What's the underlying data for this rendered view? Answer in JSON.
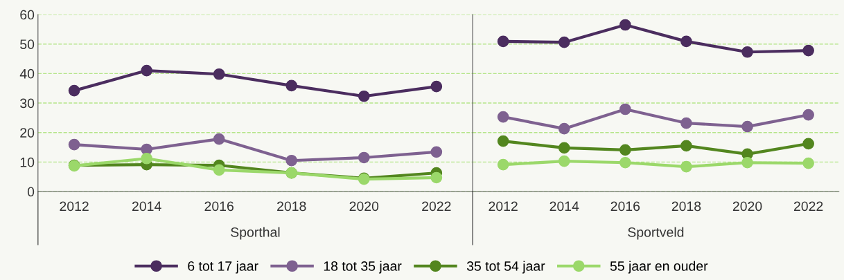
{
  "chart_data": [
    {
      "type": "line",
      "xlabel": "Sporthal",
      "categories": [
        "2012",
        "2014",
        "2016",
        "2018",
        "2020",
        "2022"
      ],
      "ylim": [
        0,
        60
      ],
      "yticks": [
        0,
        10,
        20,
        30,
        40,
        50,
        60
      ],
      "grid": "y",
      "legend": "bottom",
      "marker": "circle",
      "line_style": "solid",
      "series": [
        {
          "name": "6 tot 17 jaar",
          "color": "#4b2d5f",
          "values": [
            34.2,
            41.0,
            39.8,
            35.9,
            32.3,
            35.6
          ]
        },
        {
          "name": "18 tot 35 jaar",
          "color": "#7e6190",
          "values": [
            15.9,
            14.3,
            17.8,
            10.5,
            11.5,
            13.4
          ]
        },
        {
          "name": "35 tot 54 jaar",
          "color": "#53861f",
          "values": [
            8.9,
            9.1,
            8.9,
            6.3,
            4.5,
            6.3
          ]
        },
        {
          "name": "55 jaar en ouder",
          "color": "#9bd86a",
          "values": [
            8.7,
            11.2,
            7.3,
            6.3,
            4.2,
            4.7
          ]
        }
      ]
    },
    {
      "type": "line",
      "xlabel": "Sportveld",
      "categories": [
        "2012",
        "2014",
        "2016",
        "2018",
        "2020",
        "2022"
      ],
      "ylim": [
        0,
        60
      ],
      "yticks": [
        0,
        10,
        20,
        30,
        40,
        50,
        60
      ],
      "tick_labels": "x",
      "grid": "y",
      "marker": "circle",
      "line_style": "solid",
      "series": [
        {
          "color": "#4b2d5f",
          "values": [
            50.9,
            50.6,
            56.5,
            50.9,
            47.3,
            47.8
          ]
        },
        {
          "color": "#7e6190",
          "values": [
            25.3,
            21.3,
            27.9,
            23.2,
            22.0,
            26.0
          ]
        },
        {
          "color": "#53861f",
          "values": [
            17.1,
            14.8,
            14.1,
            15.5,
            12.7,
            16.2
          ]
        },
        {
          "color": "#9bd86a",
          "values": [
            9.1,
            10.3,
            9.8,
            8.4,
            9.8,
            9.6
          ]
        }
      ]
    }
  ]
}
